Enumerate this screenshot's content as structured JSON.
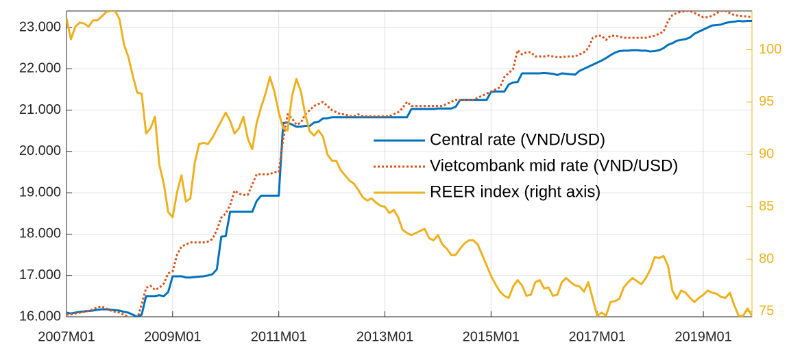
{
  "chart_data": {
    "type": "line",
    "categories": [
      "2007M01",
      null,
      null,
      null,
      null,
      null,
      null,
      null,
      null,
      null,
      null,
      null,
      null,
      null,
      null,
      null,
      null,
      null,
      null,
      null,
      null,
      null,
      null,
      null,
      "2009M01",
      null,
      null,
      null,
      null,
      null,
      null,
      null,
      null,
      null,
      null,
      null,
      null,
      null,
      null,
      null,
      null,
      null,
      null,
      null,
      null,
      null,
      null,
      null,
      "2011M01",
      null,
      null,
      null,
      null,
      null,
      null,
      null,
      null,
      null,
      null,
      null,
      null,
      null,
      null,
      null,
      null,
      null,
      null,
      null,
      null,
      null,
      null,
      null,
      "2013M01",
      null,
      null,
      null,
      null,
      null,
      null,
      null,
      null,
      null,
      null,
      null,
      null,
      null,
      null,
      null,
      null,
      null,
      null,
      null,
      null,
      null,
      null,
      null,
      "2015M01",
      null,
      null,
      null,
      null,
      null,
      null,
      null,
      null,
      null,
      null,
      null,
      null,
      null,
      null,
      null,
      null,
      null,
      null,
      null,
      null,
      null,
      null,
      null,
      "2017M01",
      null,
      null,
      null,
      null,
      null,
      null,
      null,
      null,
      null,
      null,
      null,
      null,
      null,
      null,
      null,
      null,
      null,
      null,
      null,
      null,
      null,
      null,
      null,
      "2019M01",
      null,
      null,
      null,
      null,
      null,
      null,
      null,
      null,
      null,
      null,
      null
    ],
    "ylim": [
      16000,
      23400
    ],
    "yticks": [
      {
        "value": 16000,
        "label": "16.000"
      },
      {
        "value": 17000,
        "label": "17.000"
      },
      {
        "value": 18000,
        "label": "18.000"
      },
      {
        "value": 19000,
        "label": "19.000"
      },
      {
        "value": 20000,
        "label": "20.000"
      },
      {
        "value": 21000,
        "label": "21.000"
      },
      {
        "value": 22000,
        "label": "22.000"
      },
      {
        "value": 23000,
        "label": "23.000"
      }
    ],
    "y2lim": [
      74.5,
      103.7
    ],
    "y2ticks": [
      75,
      80,
      85,
      90,
      95,
      100
    ],
    "y2color": "#edb120",
    "grid": true,
    "legend": "center",
    "series": [
      {
        "name": "Central rate (VND/USD)",
        "color": "#0072bd",
        "style": "solid",
        "values": [
          16100,
          16080,
          16100,
          16120,
          16130,
          16140,
          16150,
          16170,
          16180,
          16180,
          16170,
          16160,
          16150,
          16120,
          16100,
          16050,
          16000,
          16050,
          16500,
          16500,
          16500,
          16520,
          16500,
          16600,
          16980,
          16980,
          16980,
          16950,
          16950,
          16960,
          16970,
          16980,
          17000,
          17030,
          17150,
          17940,
          17950,
          18540,
          18540,
          18540,
          18540,
          18540,
          18540,
          18800,
          18930,
          18930,
          18930,
          18930,
          18930,
          20690,
          20700,
          20650,
          20600,
          20600,
          20620,
          20620,
          20700,
          20720,
          20800,
          20800,
          20830,
          20830,
          20830,
          20830,
          20830,
          20830,
          20830,
          20830,
          20830,
          20830,
          20830,
          20830,
          20830,
          20830,
          20830,
          20830,
          20830,
          20830,
          21030,
          21030,
          21030,
          21030,
          21030,
          21030,
          21040,
          21040,
          21040,
          21040,
          21080,
          21250,
          21250,
          21250,
          21250,
          21250,
          21250,
          21250,
          21440,
          21450,
          21450,
          21450,
          21620,
          21670,
          21680,
          21890,
          21890,
          21890,
          21890,
          21890,
          21900,
          21890,
          21880,
          21850,
          21890,
          21880,
          21870,
          21860,
          21950,
          22000,
          22050,
          22100,
          22150,
          22200,
          22260,
          22330,
          22390,
          22430,
          22440,
          22440,
          22450,
          22450,
          22440,
          22440,
          22420,
          22430,
          22450,
          22500,
          22580,
          22620,
          22680,
          22700,
          22720,
          22760,
          22850,
          22900,
          22950,
          23000,
          23050,
          23060,
          23070,
          23110,
          23130,
          23140,
          23160,
          23150,
          23160,
          23160
        ]
      },
      {
        "name": "Vietcombank mid rate (VND/USD)",
        "color": "#d95319",
        "style": "dotted",
        "values": [
          16050,
          16060,
          16080,
          16100,
          16120,
          16140,
          16180,
          16230,
          16250,
          16200,
          16150,
          16120,
          16100,
          16050,
          16000,
          15950,
          15950,
          16300,
          16700,
          16750,
          16650,
          16700,
          16800,
          17050,
          17100,
          17500,
          17700,
          17750,
          17800,
          17800,
          17800,
          17800,
          17820,
          17880,
          18100,
          18400,
          18500,
          18700,
          19050,
          18980,
          18950,
          18950,
          19200,
          19450,
          19450,
          19450,
          19450,
          19500,
          19500,
          20300,
          20900,
          20800,
          20650,
          20700,
          20900,
          21000,
          21100,
          21150,
          21200,
          21100,
          21000,
          20950,
          20900,
          20900,
          20850,
          20850,
          20900,
          20850,
          20850,
          20850,
          20850,
          20850,
          20850,
          20850,
          20900,
          20950,
          21050,
          21200,
          21100,
          21100,
          21100,
          21100,
          21100,
          21100,
          21100,
          21100,
          21150,
          21200,
          21250,
          21250,
          21250,
          21250,
          21250,
          21300,
          21350,
          21400,
          21450,
          21500,
          21550,
          21800,
          21900,
          22000,
          22450,
          22350,
          22400,
          22400,
          22300,
          22300,
          22300,
          22320,
          22300,
          22280,
          22280,
          22300,
          22300,
          22300,
          22350,
          22400,
          22500,
          22750,
          22800,
          22800,
          22700,
          22800,
          22800,
          22780,
          22750,
          22750,
          22750,
          22750,
          22750,
          22750,
          22780,
          22800,
          22850,
          22900,
          23150,
          23300,
          23350,
          23380,
          23400,
          23400,
          23350,
          23300,
          23250,
          23250,
          23280,
          23350,
          23400,
          23400,
          23350,
          23300,
          23280,
          23270,
          23270,
          23250
        ]
      },
      {
        "name": "REER index (right axis)",
        "color": "#edb120",
        "style": "solid",
        "axis": "y2",
        "values": [
          103,
          101,
          102.2,
          102.6,
          102.5,
          102.2,
          102.8,
          102.8,
          103.2,
          103.6,
          103.7,
          103.7,
          102.9,
          100.5,
          99.3,
          97.5,
          95.9,
          95.8,
          92,
          92.5,
          93.6,
          89,
          87.2,
          84.5,
          84,
          86.4,
          88,
          85.5,
          85.8,
          89.2,
          91,
          91.1,
          91,
          91.6,
          92.4,
          93.2,
          94,
          93.2,
          92,
          92.5,
          93.6,
          91.5,
          90.5,
          93,
          94.5,
          95.8,
          97.4,
          96,
          94,
          92.5,
          92.3,
          95.6,
          97.2,
          96,
          93.8,
          92.2,
          91.8,
          92.3,
          91.7,
          90,
          89.4,
          89.4,
          88.5,
          88,
          87.5,
          87.2,
          86.6,
          85.9,
          85.6,
          85.8,
          85.4,
          85.1,
          85,
          84.4,
          84.7,
          84,
          82.8,
          82.5,
          82.3,
          82.5,
          82.7,
          82.9,
          82,
          81.8,
          82.3,
          81.4,
          81,
          80.4,
          80.4,
          81,
          81.5,
          81.8,
          81.8,
          81.4,
          80.4,
          79.4,
          78.4,
          77.6,
          76.9,
          76.5,
          76.3,
          77.4,
          78,
          77.5,
          76.5,
          76.6,
          77.8,
          78,
          77.2,
          77.3,
          76.5,
          76.6,
          77.8,
          78.2,
          77.8,
          77.5,
          77.4,
          76.9,
          77.8,
          76.2,
          74.6,
          74.9,
          74.6,
          75.9,
          76,
          76.2,
          77.3,
          77.8,
          78.2,
          77.9,
          77.6,
          78.2,
          79,
          80.2,
          80.1,
          80.3,
          79.4,
          77,
          76.2,
          77,
          76.8,
          76.3,
          75.9,
          76.3,
          76.6,
          77,
          76.8,
          76.7,
          76.4,
          76.3,
          76.8,
          75.6,
          74.6,
          74.6,
          75.3,
          74.6
        ]
      }
    ]
  }
}
